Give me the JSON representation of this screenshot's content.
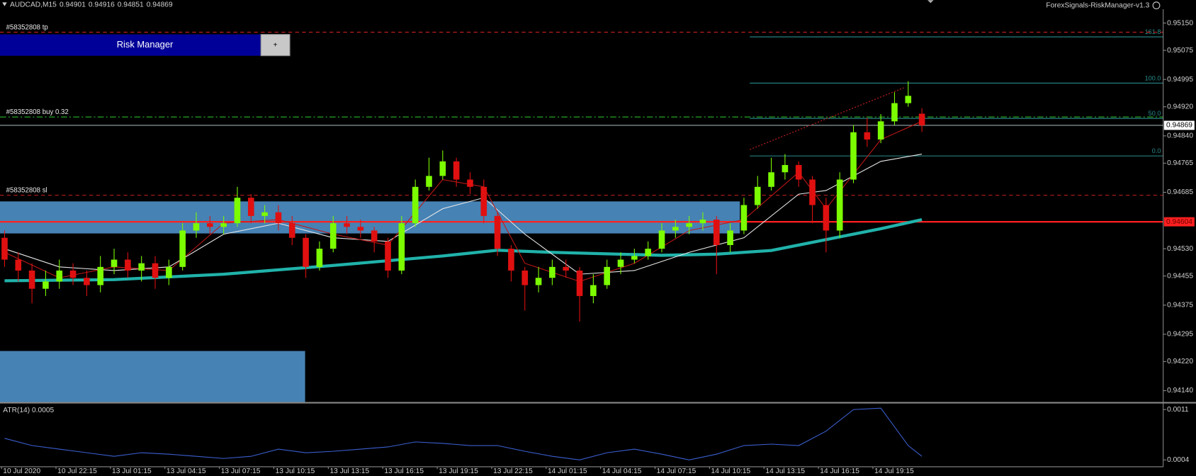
{
  "header": {
    "symbol": "AUDCAD,M15",
    "ohlc": [
      0.94901,
      0.94916,
      0.94851,
      0.94869
    ],
    "indicator": "ForexSignals-RiskManager-v1.3"
  },
  "panel": {
    "title": "Risk Manager",
    "button": "+"
  },
  "price_axis": {
    "ylim": [
      0.94109,
      0.95188
    ],
    "ticks": [
      {
        "value": 0.9515,
        "label": "0.95150"
      },
      0.95075,
      0.94995,
      {
        "value": 0.9492,
        "label": "0.94920"
      },
      {
        "value": 0.9484,
        "label": "0.94840"
      },
      0.94765,
      0.94685,
      {
        "value": 0.9453,
        "label": "0.94530"
      },
      0.94455,
      0.94375,
      0.94295,
      {
        "value": 0.9422,
        "label": "0.94220"
      },
      {
        "value": 0.9414,
        "label": "0.94140"
      }
    ],
    "current_price": 0.94869,
    "level_price": 0.94604,
    "level_color": "#ff2020"
  },
  "time_axis": {
    "labels": [
      "10 Jul 2020",
      "10 Jul 22:15",
      "13 Jul 01:15",
      "13 Jul 04:15",
      "13 Jul 07:15",
      "13 Jul 10:15",
      "13 Jul 13:15",
      "13 Jul 16:15",
      "13 Jul 19:15",
      "13 Jul 22:15",
      "14 Jul 01:15",
      "14 Jul 04:15",
      "14 Jul 07:15",
      "14 Jul 10:15",
      "14 Jul 13:15",
      "14 Jul 16:15",
      "14 Jul 19:15"
    ]
  },
  "up_color": "#7cfc00",
  "down_color": "#e01010",
  "candles": [
    [
      0.9456,
      0.9458,
      0.9448,
      0.945
    ],
    [
      0.945,
      0.9452,
      0.9444,
      0.9447
    ],
    [
      0.9447,
      0.9449,
      0.9438,
      0.9442
    ],
    [
      0.9442,
      0.9447,
      0.944,
      0.9444
    ],
    [
      0.9444,
      0.945,
      0.9442,
      0.9447
    ],
    [
      0.9447,
      0.9449,
      0.9443,
      0.9445
    ],
    [
      0.9445,
      0.9447,
      0.944,
      0.9443
    ],
    [
      0.9443,
      0.9451,
      0.9441,
      0.9448
    ],
    [
      0.9448,
      0.9453,
      0.9446,
      0.945
    ],
    [
      0.945,
      0.9452,
      0.9445,
      0.9447
    ],
    [
      0.9447,
      0.9451,
      0.9444,
      0.9449
    ],
    [
      0.9449,
      0.9451,
      0.9442,
      0.9445
    ],
    [
      0.9445,
      0.945,
      0.9443,
      0.9448
    ],
    [
      0.9448,
      0.946,
      0.9447,
      0.9458
    ],
    [
      0.9458,
      0.9463,
      0.9456,
      0.946
    ],
    [
      0.946,
      0.9462,
      0.9457,
      0.9459
    ],
    [
      0.9459,
      0.9462,
      0.9457,
      0.946
    ],
    [
      0.946,
      0.947,
      0.9459,
      0.9467
    ],
    [
      0.9467,
      0.9468,
      0.946,
      0.9462
    ],
    [
      0.9462,
      0.9465,
      0.946,
      0.9463
    ],
    [
      0.9463,
      0.9465,
      0.9458,
      0.946
    ],
    [
      0.946,
      0.9462,
      0.9454,
      0.9456
    ],
    [
      0.9456,
      0.9457,
      0.9445,
      0.9448
    ],
    [
      0.9448,
      0.9455,
      0.9447,
      0.9453
    ],
    [
      0.9453,
      0.9462,
      0.9452,
      0.946
    ],
    [
      0.946,
      0.9462,
      0.9457,
      0.9459
    ],
    [
      0.9459,
      0.9461,
      0.9456,
      0.9458
    ],
    [
      0.9458,
      0.9459,
      0.9452,
      0.9455
    ],
    [
      0.9455,
      0.9456,
      0.9445,
      0.9447
    ],
    [
      0.9447,
      0.9462,
      0.9446,
      0.946
    ],
    [
      0.946,
      0.9472,
      0.9459,
      0.947
    ],
    [
      0.947,
      0.9478,
      0.9469,
      0.9473
    ],
    [
      0.9473,
      0.948,
      0.9472,
      0.9477
    ],
    [
      0.9477,
      0.9478,
      0.947,
      0.9472
    ],
    [
      0.9472,
      0.9474,
      0.9468,
      0.947
    ],
    [
      0.947,
      0.9472,
      0.946,
      0.9462
    ],
    [
      0.9462,
      0.9463,
      0.9451,
      0.9453
    ],
    [
      0.9453,
      0.9454,
      0.9444,
      0.9447
    ],
    [
      0.9447,
      0.9448,
      0.9436,
      0.9443
    ],
    [
      0.9443,
      0.9448,
      0.9441,
      0.9445
    ],
    [
      0.9445,
      0.945,
      0.9443,
      0.9448
    ],
    [
      0.9448,
      0.945,
      0.9445,
      0.9447
    ],
    [
      0.9447,
      0.9448,
      0.9433,
      0.944
    ],
    [
      0.944,
      0.9446,
      0.9438,
      0.9443
    ],
    [
      0.9443,
      0.945,
      0.9442,
      0.9448
    ],
    [
      0.9448,
      0.9452,
      0.9446,
      0.945
    ],
    [
      0.945,
      0.9453,
      0.9449,
      0.9451
    ],
    [
      0.9451,
      0.9455,
      0.945,
      0.9453
    ],
    [
      0.9453,
      0.946,
      0.9452,
      0.9458
    ],
    [
      0.9458,
      0.9461,
      0.9456,
      0.9459
    ],
    [
      0.9459,
      0.9462,
      0.9457,
      0.946
    ],
    [
      0.946,
      0.9463,
      0.9458,
      0.9461
    ],
    [
      0.9461,
      0.9462,
      0.9446,
      0.9454
    ],
    [
      0.9454,
      0.946,
      0.9452,
      0.9458
    ],
    [
      0.9458,
      0.9467,
      0.9457,
      0.9465
    ],
    [
      0.9465,
      0.9473,
      0.9464,
      0.947
    ],
    [
      0.947,
      0.9478,
      0.9469,
      0.9474
    ],
    [
      0.9474,
      0.9479,
      0.9472,
      0.9476
    ],
    [
      0.9476,
      0.9477,
      0.947,
      0.9472
    ],
    [
      0.9472,
      0.9473,
      0.946,
      0.9465
    ],
    [
      0.9465,
      0.9467,
      0.9452,
      0.9458
    ],
    [
      0.9458,
      0.9474,
      0.9456,
      0.9472
    ],
    [
      0.9472,
      0.9487,
      0.9471,
      0.9485
    ],
    [
      0.9485,
      0.9489,
      0.9481,
      0.9483
    ],
    [
      0.9483,
      0.949,
      0.9482,
      0.9488
    ],
    [
      0.9488,
      0.9496,
      0.9487,
      0.9493
    ],
    [
      0.9493,
      0.9499,
      0.9492,
      0.9495
    ],
    [
      0.94901,
      0.94916,
      0.94851,
      0.94869
    ]
  ],
  "moving_averages": [
    {
      "color": "#20b2aa",
      "width": 4,
      "x": [
        0,
        8,
        16,
        24,
        32,
        36,
        40,
        48,
        52,
        56,
        60,
        64,
        67
      ],
      "values": [
        0.94442,
        0.94445,
        0.9446,
        0.94484,
        0.9451,
        0.94526,
        0.9452,
        0.94512,
        0.94515,
        0.94525,
        0.94555,
        0.94585,
        0.9461
      ]
    },
    {
      "color": "#e8e8e8",
      "width": 1,
      "x": [
        0,
        4,
        8,
        12,
        16,
        20,
        24,
        28,
        32,
        35,
        38,
        42,
        46,
        50,
        54,
        58,
        60,
        64,
        67
      ],
      "values": [
        0.9453,
        0.9448,
        0.9447,
        0.9448,
        0.9457,
        0.946,
        0.9456,
        0.9455,
        0.9464,
        0.9467,
        0.9457,
        0.9446,
        0.9447,
        0.9452,
        0.9456,
        0.9468,
        0.9469,
        0.9477,
        0.9479
      ]
    },
    {
      "color": "#c01818",
      "width": 1,
      "x": [
        0,
        4,
        8,
        12,
        16,
        20,
        24,
        28,
        32,
        35,
        38,
        42,
        46,
        50,
        54,
        58,
        60,
        64,
        67
      ],
      "values": [
        0.9452,
        0.9445,
        0.9448,
        0.9447,
        0.946,
        0.9461,
        0.9457,
        0.9454,
        0.9472,
        0.947,
        0.9449,
        0.9444,
        0.9449,
        0.9458,
        0.9461,
        0.9474,
        0.9464,
        0.9483,
        0.9488
      ]
    }
  ],
  "zones": [
    {
      "top": 0.9466,
      "bottom": 0.94572,
      "color": "#4682b4"
    },
    {
      "top": 0.94249,
      "bottom": 0.94109,
      "color": "#4682b4"
    }
  ],
  "trade_lines": [
    {
      "label": "#58352808 tp",
      "price": 0.95125,
      "color": "#c82020",
      "dash": "5,4"
    },
    {
      "label": "#58352808 buy 0.32",
      "price": 0.94892,
      "color": "#32cd32",
      "dash": "8,3,2,3"
    },
    {
      "label": "#58352808 sl",
      "price": 0.94677,
      "color": "#c82020",
      "dash": "5,4"
    }
  ],
  "fibonacci": {
    "color": "#2a8c8c",
    "levels": [
      {
        "label": "161.8",
        "price": 0.95112
      },
      {
        "label": "100.0",
        "price": 0.94985
      },
      {
        "label": "50.0",
        "price": 0.94888
      },
      {
        "label": "0.0",
        "price": 0.94785
      }
    ]
  },
  "atr": {
    "label": "ATR(14) 0.0005",
    "color": "#3b5fd0",
    "ylim": [
      0.000326,
      0.001174
    ],
    "ticks": [
      0.0011,
      0.0004
    ],
    "x": [
      0,
      2,
      4,
      6,
      8,
      10,
      12,
      14,
      16,
      18,
      20,
      22,
      24,
      26,
      28,
      30,
      32,
      34,
      36,
      38,
      40,
      42,
      44,
      46,
      48,
      50,
      52,
      54,
      56,
      58,
      60,
      62,
      64,
      66,
      67
    ],
    "values": [
      0.0007,
      0.0006,
      0.00055,
      0.0005,
      0.00045,
      0.0005,
      0.00048,
      0.00045,
      0.00042,
      0.00045,
      0.00055,
      0.0005,
      0.00052,
      0.00055,
      0.00058,
      0.00065,
      0.00063,
      0.0006,
      0.0006,
      0.00052,
      0.00045,
      0.0004,
      0.0005,
      0.00055,
      0.00048,
      0.0004,
      0.00048,
      0.0006,
      0.00062,
      0.0006,
      0.0008,
      0.0011,
      0.00112,
      0.0006,
      0.00045
    ]
  }
}
